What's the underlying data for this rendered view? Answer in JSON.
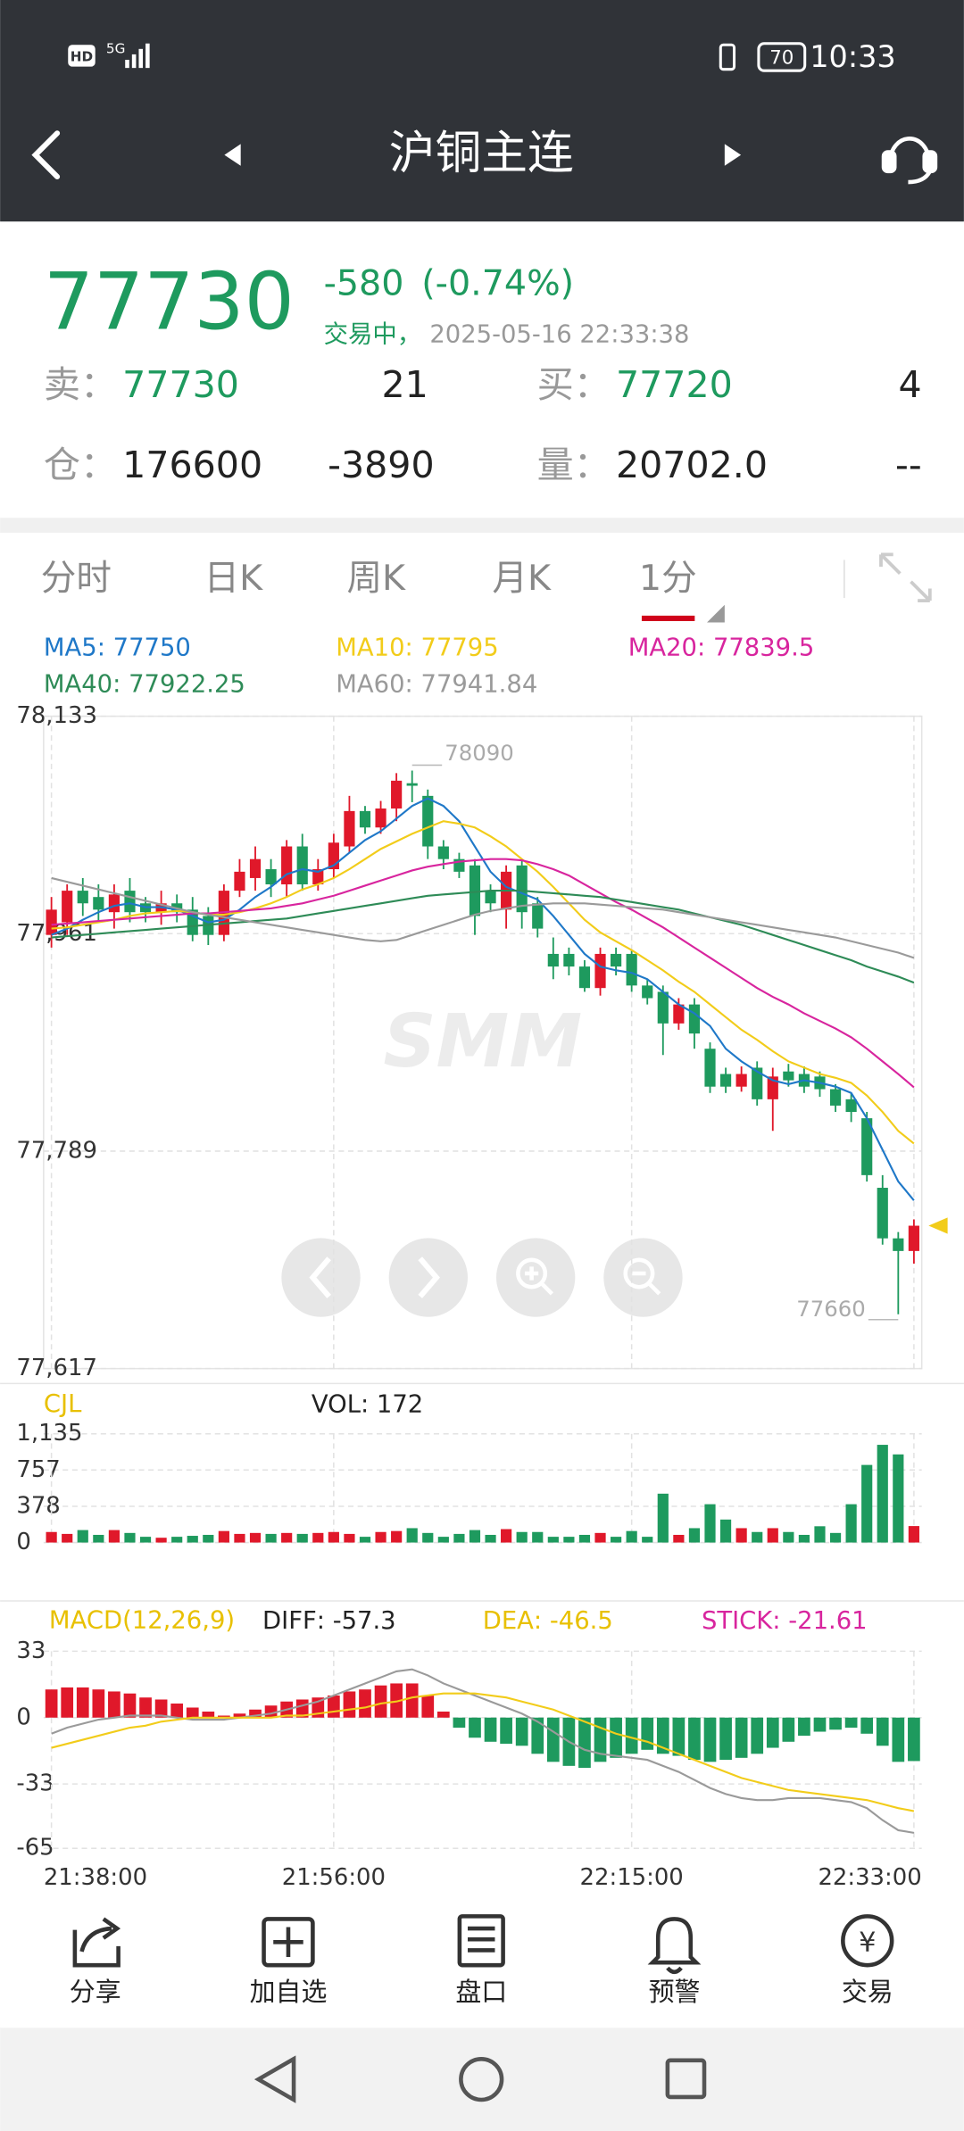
{
  "status_bar": {
    "hd": "HD",
    "network": "5G",
    "battery": "70",
    "time": "10:33"
  },
  "header": {
    "title": "沪铜主连"
  },
  "quote": {
    "price": "77730",
    "change": "-580",
    "change_pct": "(-0.74%)",
    "status": "交易中，",
    "timestamp": "2025-05-16 22:33:38",
    "sell_label": "卖：",
    "sell_price": "77730",
    "sell_volume": "21",
    "buy_label": "买：",
    "buy_price": "77720",
    "buy_volume": "4",
    "oi_label": "仓：",
    "open_interest": "176600",
    "oi_change": "-3890",
    "vol_label": "量：",
    "volume": "20702.0",
    "volume_change": "--"
  },
  "tabs": [
    "分时",
    "日K",
    "周K",
    "月K",
    "1分"
  ],
  "toolbar": [
    "分享",
    "加自选",
    "盘口",
    "预警",
    "交易"
  ],
  "chart_data": [
    {
      "type": "candlestick",
      "watermark": "SMM",
      "ylim": [
        77617,
        78133
      ],
      "yticks": [
        {
          "value": 78133,
          "label": "78,133"
        },
        {
          "value": 77961,
          "label": "77,961"
        },
        {
          "value": 77789,
          "label": "77,789"
        },
        {
          "value": 77617,
          "label": "77,617"
        }
      ],
      "grid": true,
      "up_color": "#e0182a",
      "down_color": "#1e9a5e",
      "open": [
        77960,
        77970,
        77995,
        77990,
        77978,
        77995,
        77985,
        77978,
        77985,
        77980,
        77975,
        77960,
        77995,
        78005,
        78012,
        78000,
        78030,
        78000,
        78012,
        78030,
        78058,
        78045,
        78060,
        78080,
        78070,
        78030,
        78020,
        78015,
        77995,
        77980,
        78015,
        77985,
        77945,
        77945,
        77935,
        77918,
        77945,
        77945,
        77920,
        77915,
        77890,
        77905,
        77870,
        77850,
        77840,
        77855,
        77830,
        77852,
        77850,
        77848,
        77838,
        77830,
        77815,
        77760,
        77720,
        77710
      ],
      "high": [
        77990,
        78000,
        78005,
        78000,
        78000,
        78005,
        77990,
        77995,
        77992,
        77990,
        77982,
        78000,
        78020,
        78030,
        78020,
        78035,
        78040,
        78020,
        78040,
        78070,
        78062,
        78066,
        78088,
        78090,
        78075,
        78035,
        78025,
        78020,
        78000,
        78015,
        78020,
        77990,
        77958,
        77950,
        77940,
        77950,
        77950,
        77948,
        77925,
        77920,
        77910,
        77910,
        77875,
        77855,
        77856,
        77860,
        77855,
        77858,
        77856,
        77852,
        77842,
        77835,
        77820,
        77770,
        77725,
        77735
      ],
      "low": [
        77950,
        77960,
        77975,
        77970,
        77965,
        77970,
        77970,
        77968,
        77970,
        77955,
        77952,
        77955,
        77990,
        77995,
        77990,
        77990,
        77995,
        77995,
        78005,
        78025,
        78040,
        78040,
        78050,
        78065,
        78020,
        78012,
        78005,
        77960,
        77978,
        77965,
        77965,
        77958,
        77925,
        77928,
        77915,
        77912,
        77928,
        77915,
        77905,
        77865,
        77885,
        77870,
        77835,
        77835,
        77836,
        77825,
        77805,
        77840,
        77835,
        77832,
        77820,
        77812,
        77765,
        77715,
        77660,
        77700
      ],
      "close": [
        77980,
        77995,
        77985,
        77980,
        77992,
        77978,
        77978,
        77985,
        77978,
        77960,
        77960,
        77995,
        78010,
        78020,
        78000,
        78030,
        78000,
        78012,
        78033,
        78058,
        78045,
        78060,
        78082,
        78078,
        78030,
        78020,
        78010,
        77975,
        77985,
        78010,
        77978,
        77965,
        77935,
        77935,
        77918,
        77945,
        77935,
        77920,
        77910,
        77890,
        77905,
        77882,
        77840,
        77840,
        77850,
        77830,
        77848,
        77845,
        77840,
        77838,
        77825,
        77820,
        77770,
        77720,
        77710,
        77730
      ],
      "series": [
        {
          "name": "MA5",
          "color": "#1f78c8",
          "values": [
            77960,
            77965,
            77972,
            77978,
            77983,
            77985,
            77982,
            77982,
            77980,
            77975,
            77970,
            77972,
            77980,
            77990,
            77998,
            78008,
            78012,
            78010,
            78015,
            78025,
            78035,
            78042,
            78052,
            78062,
            78068,
            78062,
            78050,
            78030,
            78010,
            77998,
            77993,
            77988,
            77975,
            77960,
            77945,
            77935,
            77932,
            77930,
            77925,
            77915,
            77905,
            77898,
            77888,
            77870,
            77860,
            77852,
            77845,
            77842,
            77845,
            77843,
            77840,
            77835,
            77815,
            77790,
            77765,
            77750
          ]
        },
        {
          "name": "MA10",
          "color": "#f2cc1a",
          "values": [
            77965,
            77966,
            77968,
            77970,
            77972,
            77975,
            77977,
            77978,
            77979,
            77978,
            77976,
            77976,
            77978,
            77981,
            77985,
            77990,
            77996,
            78000,
            78005,
            78012,
            78020,
            78028,
            78034,
            78040,
            78045,
            78050,
            78048,
            78045,
            78038,
            78030,
            78020,
            78010,
            77998,
            77985,
            77972,
            77962,
            77955,
            77948,
            77940,
            77932,
            77923,
            77915,
            77905,
            77895,
            77885,
            77877,
            77868,
            77860,
            77855,
            77850,
            77847,
            77843,
            77833,
            77820,
            77805,
            77795
          ]
        },
        {
          "name": "MA20",
          "color": "#d8259e",
          "values": [
            77968,
            77969,
            77970,
            77971,
            77972,
            77973,
            77974,
            77975,
            77976,
            77977,
            77977,
            77978,
            77979,
            77980,
            77981,
            77983,
            77985,
            77988,
            77991,
            77995,
            77999,
            78003,
            78007,
            78011,
            78014,
            78016,
            78018,
            78019,
            78020,
            78020,
            78019,
            78016,
            78012,
            78007,
            78000,
            77993,
            77986,
            77980,
            77973,
            77966,
            77958,
            77950,
            77942,
            77934,
            77926,
            77918,
            77911,
            77905,
            77898,
            77892,
            77886,
            77879,
            77870,
            77860,
            77850,
            77839.5
          ]
        },
        {
          "name": "MA40",
          "color": "#2e8b57",
          "values": [
            77958,
            77959,
            77960,
            77961,
            77962,
            77963,
            77964,
            77965,
            77966,
            77967,
            77968,
            77969,
            77970,
            77971,
            77972,
            77973,
            77975,
            77977,
            77979,
            77981,
            77983,
            77985,
            77987,
            77989,
            77991,
            77992,
            77993,
            77994,
            77995,
            77995,
            77995,
            77994,
            77993,
            77992,
            77991,
            77990,
            77988,
            77986,
            77984,
            77982,
            77980,
            77977,
            77974,
            77971,
            77968,
            77964,
            77960,
            77956,
            77952,
            77948,
            77944,
            77940,
            77935,
            77931,
            77927,
            77922.25
          ]
        },
        {
          "name": "MA60",
          "color": "#9a9a9a",
          "values": [
            78005,
            78002,
            77999,
            77996,
            77993,
            77990,
            77987,
            77984,
            77981,
            77978,
            77976,
            77974,
            77972,
            77970,
            77968,
            77966,
            77964,
            77962,
            77960,
            77958,
            77956,
            77955,
            77956,
            77960,
            77964,
            77968,
            77972,
            77976,
            77979,
            77981,
            77983,
            77984,
            77985,
            77985,
            77985,
            77984,
            77983,
            77982,
            77981,
            77980,
            77978,
            77976,
            77974,
            77972,
            77970,
            77968,
            77966,
            77964,
            77962,
            77960,
            77958,
            77955,
            77952,
            77949,
            77946,
            77941.84
          ]
        }
      ],
      "annotations": {
        "high": 78090,
        "low": 77660
      },
      "last_price": 77730,
      "last_price_color": "#f2cc1a"
    },
    {
      "type": "bar",
      "title": "CJL",
      "value_name": "VOL",
      "ylim": [
        0,
        1135
      ],
      "yticks": [
        0,
        378,
        757,
        {
          "value": 1135,
          "label": "1,135"
        }
      ],
      "values": [
        110,
        90,
        130,
        80,
        130,
        100,
        60,
        50,
        60,
        70,
        80,
        120,
        90,
        100,
        90,
        100,
        90,
        100,
        110,
        90,
        60,
        110,
        120,
        150,
        100,
        60,
        90,
        130,
        80,
        140,
        110,
        110,
        60,
        60,
        80,
        100,
        60,
        120,
        60,
        510,
        80,
        150,
        400,
        240,
        150,
        110,
        150,
        110,
        80,
        170,
        100,
        400,
        810,
        1020,
        920,
        172
      ]
    },
    {
      "type": "macd",
      "title": "MACD(12,26,9)",
      "ylim": [
        -65,
        33
      ],
      "yticks": [
        33,
        0,
        -33,
        -65
      ],
      "xticks": [
        "21:38:00",
        "21:56:00",
        "22:15:00",
        "22:33:00"
      ],
      "series": [
        {
          "name": "DIFF",
          "color": "#9a9a9a",
          "values": [
            -8,
            -5,
            -3,
            -1,
            0,
            1,
            1,
            1,
            0,
            -1,
            -1,
            -1,
            0,
            1,
            2,
            4,
            6,
            8,
            11,
            14,
            17,
            20,
            23,
            24,
            21,
            17,
            14,
            11,
            8,
            5,
            2,
            -2,
            -7,
            -12,
            -16,
            -18,
            -19,
            -20,
            -21,
            -24,
            -27,
            -31,
            -35,
            -38,
            -40,
            -41,
            -41,
            -40,
            -40,
            -40,
            -41,
            -42,
            -45,
            -51,
            -56,
            -57.3
          ]
        },
        {
          "name": "DEA",
          "color": "#f2cc1a",
          "values": [
            -15,
            -13,
            -11,
            -9,
            -7,
            -5,
            -4,
            -2,
            -1,
            0,
            0,
            0,
            0,
            0,
            0,
            1,
            1,
            2,
            3,
            4,
            5,
            7,
            8,
            10,
            11,
            12,
            12,
            12,
            11,
            10,
            8,
            6,
            4,
            1,
            -2,
            -5,
            -8,
            -10,
            -12,
            -15,
            -18,
            -21,
            -24,
            -27,
            -30,
            -32,
            -34,
            -36,
            -37,
            -38,
            -39,
            -40,
            -41,
            -43,
            -45,
            -46.5
          ]
        }
      ],
      "histogram": {
        "name": "STICK",
        "values": [
          14,
          15,
          15,
          14,
          13,
          12,
          10,
          9,
          7,
          5,
          3,
          1,
          2,
          4,
          6,
          8,
          9,
          10,
          11,
          13,
          14,
          16,
          17,
          17,
          11,
          3,
          -5,
          -10,
          -12,
          -13,
          -14,
          -18,
          -22,
          -24,
          -25,
          -22,
          -20,
          -18,
          -16,
          -18,
          -19,
          -21,
          -22,
          -21,
          -20,
          -18,
          -15,
          -12,
          -9,
          -7,
          -6,
          -5,
          -8,
          -14,
          -22,
          -21.61
        ]
      }
    }
  ]
}
